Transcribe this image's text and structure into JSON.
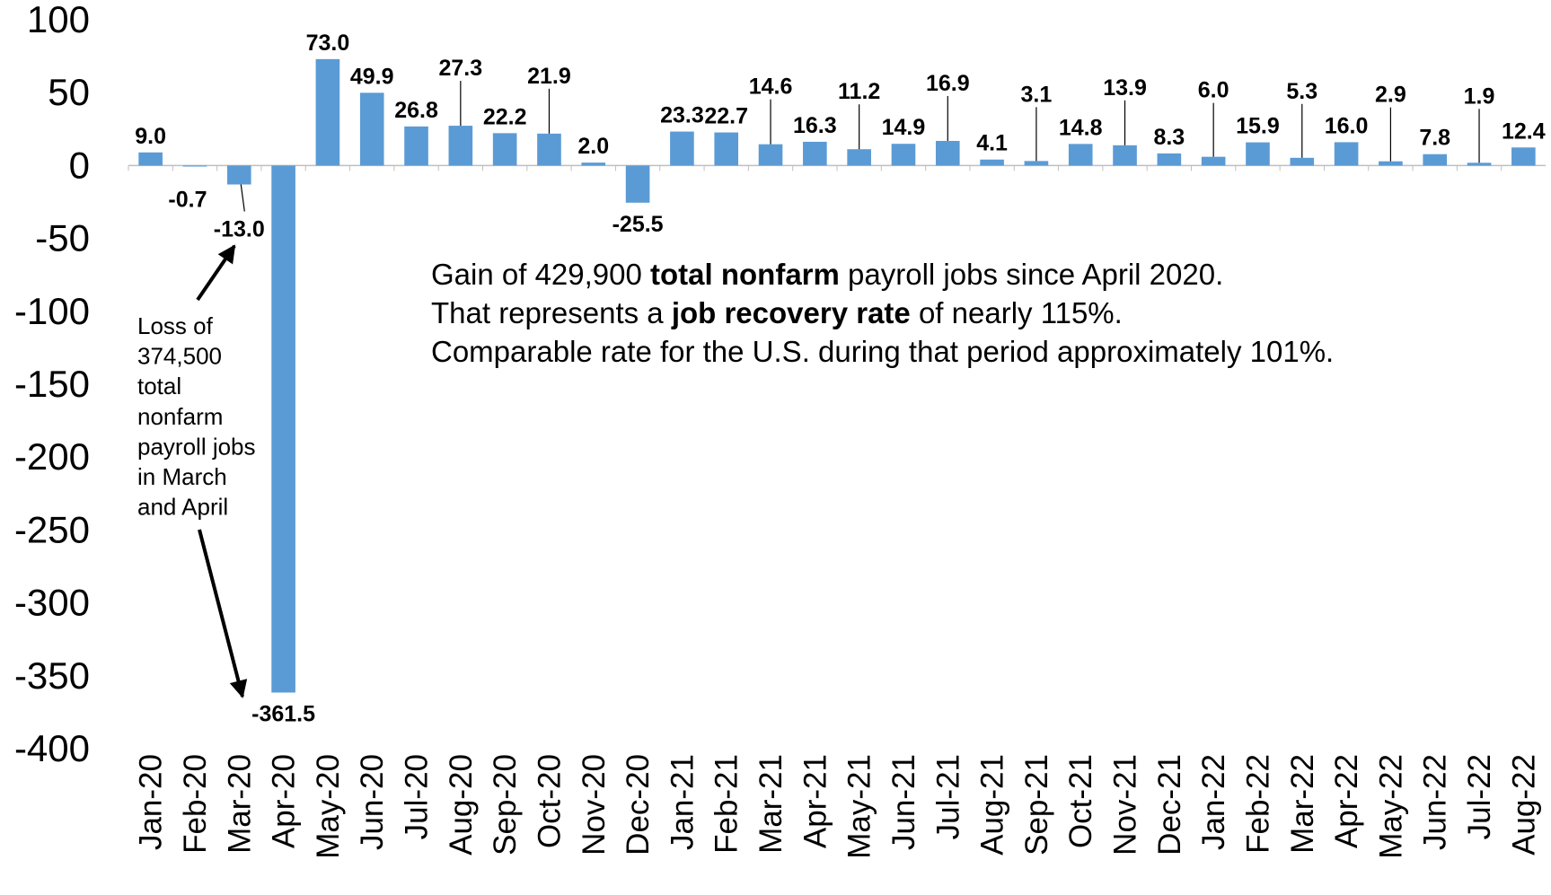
{
  "chart_data": {
    "type": "bar",
    "categories": [
      "Jan-20",
      "Feb-20",
      "Mar-20",
      "Apr-20",
      "May-20",
      "Jun-20",
      "Jul-20",
      "Aug-20",
      "Sep-20",
      "Oct-20",
      "Nov-20",
      "Dec-20",
      "Jan-21",
      "Feb-21",
      "Mar-21",
      "Apr-21",
      "May-21",
      "Jun-21",
      "Jul-21",
      "Aug-21",
      "Sep-21",
      "Oct-21",
      "Nov-21",
      "Dec-21",
      "Jan-22",
      "Feb-22",
      "Mar-22",
      "Apr-22",
      "May-22",
      "Jun-22",
      "Jul-22",
      "Aug-22"
    ],
    "values": [
      9.0,
      -0.7,
      -13.0,
      -361.5,
      73.0,
      49.9,
      26.8,
      27.3,
      22.2,
      21.9,
      2.0,
      -25.5,
      23.3,
      22.7,
      14.6,
      16.3,
      11.2,
      14.9,
      16.9,
      4.1,
      3.1,
      14.8,
      13.9,
      8.3,
      6.0,
      15.9,
      5.3,
      16.0,
      2.9,
      7.8,
      1.9,
      12.4
    ],
    "value_labels": [
      "9.0",
      "-0.7",
      "-13.0",
      "-361.5",
      "73.0",
      "49.9",
      "26.8",
      "27.3",
      "22.2",
      "21.9",
      "2.0",
      "-25.5",
      "23.3",
      "22.7",
      "14.6",
      "16.3",
      "11.2",
      "14.9",
      "16.9",
      "4.1",
      "3.1",
      "14.8",
      "13.9",
      "8.3",
      "6.0",
      "15.9",
      "5.3",
      "16.0",
      "2.9",
      "7.8",
      "1.9",
      "12.4"
    ],
    "color": "#5b9bd5",
    "ylim": [
      -400,
      100
    ],
    "yticks": [
      100,
      50,
      0,
      -50,
      -100,
      -150,
      -200,
      -250,
      -300,
      -350,
      -400
    ],
    "grid": false,
    "annotations": {
      "loss": [
        "Loss of",
        "374,500",
        "total",
        "nonfarm",
        "payroll jobs",
        "in March",
        "and April"
      ],
      "gain": [
        [
          "Gain of 429,900 ",
          "total nonfarm",
          " payroll jobs since April 2020."
        ],
        [
          "That represents a ",
          "job recovery rate",
          " of nearly 115%."
        ],
        [
          "Comparable rate for the U.S. during that period approximately 101%."
        ]
      ]
    }
  }
}
